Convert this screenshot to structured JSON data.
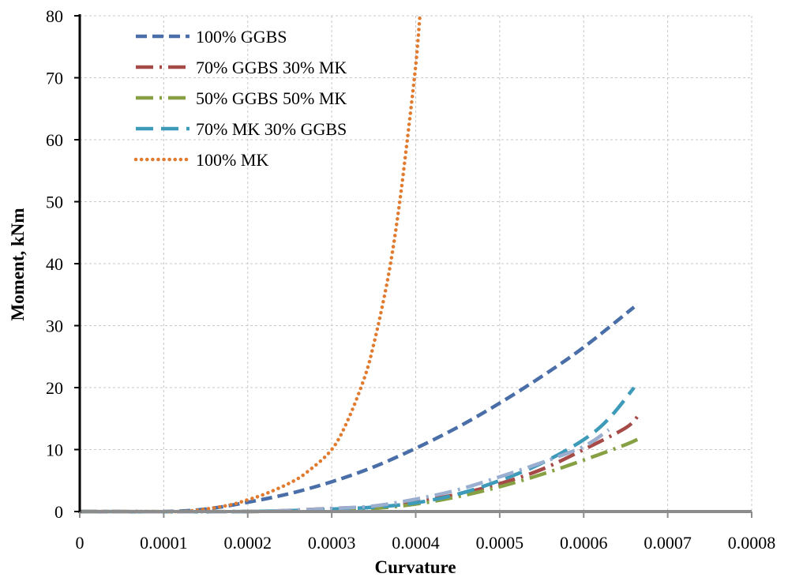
{
  "chart_data": {
    "type": "line",
    "title": "",
    "xlabel": "Curvature",
    "ylabel": "Moment, kNm",
    "xlim": [
      0,
      0.0008
    ],
    "ylim": [
      0,
      80
    ],
    "x_ticks": [
      "0",
      "0.0001",
      "0.0002",
      "0.0003",
      "0.0004",
      "0.0005",
      "0.0006",
      "0.0007",
      "0.0008"
    ],
    "y_ticks": [
      "0",
      "10",
      "20",
      "30",
      "40",
      "50",
      "60",
      "70",
      "80"
    ],
    "grid": true,
    "legend_position": "top-left",
    "series": [
      {
        "name": "100% GGBS",
        "color": "#4a6fa8",
        "style": "dashed",
        "x": [
          0,
          0.0001,
          0.00015,
          0.0002,
          0.00025,
          0.0003,
          0.00035,
          0.0004,
          0.00045,
          0.0005,
          0.00055,
          0.0006,
          0.00066
        ],
        "y": [
          0,
          0,
          0.4,
          1.5,
          2.9,
          4.8,
          7.2,
          10.2,
          13.6,
          17.5,
          21.8,
          26.5,
          33
        ]
      },
      {
        "name": "70% GGBS 30% MK",
        "color": "#a64a48",
        "style": "dash-dot",
        "x": [
          0,
          0.0002,
          0.0003,
          0.00035,
          0.0004,
          0.00045,
          0.0005,
          0.00055,
          0.0006,
          0.00065,
          0.000665
        ],
        "y": [
          0,
          0,
          0.5,
          0.8,
          1.6,
          2.8,
          4.5,
          6.8,
          10,
          13.5,
          15.5
        ]
      },
      {
        "name": "50% GGBS 50% MK",
        "color": "#86a043",
        "style": "dash-dot",
        "x": [
          0,
          0.0002,
          0.0003,
          0.00035,
          0.0004,
          0.00045,
          0.0005,
          0.00055,
          0.0006,
          0.00065,
          0.000665
        ],
        "y": [
          0,
          0,
          0.3,
          0.5,
          1.2,
          2.4,
          4,
          6,
          8.3,
          10.8,
          11.7
        ]
      },
      {
        "name": "70% MK 30% GGBS",
        "color": "#3d9ab8",
        "style": "long-dash",
        "x": [
          0,
          0.0002,
          0.0003,
          0.00035,
          0.0004,
          0.00045,
          0.0005,
          0.00055,
          0.0006,
          0.00063,
          0.00066
        ],
        "y": [
          0,
          0,
          0.4,
          0.7,
          1.4,
          2.8,
          5,
          7.8,
          11.6,
          15,
          20
        ]
      },
      {
        "name": "",
        "color": "#9aaed0",
        "style": "dash-dot",
        "x": [
          0,
          0.0002,
          0.0003,
          0.00035,
          0.0004,
          0.00045,
          0.0005,
          0.00055,
          0.0006,
          0.00063
        ],
        "y": [
          0,
          0,
          0.5,
          0.9,
          2,
          3.5,
          5.6,
          7.9,
          10.5,
          13.2
        ]
      },
      {
        "name": "100% MK",
        "color": "#e07b2f",
        "style": "dotted",
        "x": [
          0,
          4e-05,
          8e-05,
          0.00012,
          0.00015,
          0.00018,
          0.0002,
          0.00022,
          0.00025,
          0.00027,
          0.0003,
          0.00032,
          0.00034,
          0.00035,
          0.00036,
          0.00037,
          0.00038,
          0.00039,
          0.0004,
          0.000405
        ],
        "y": [
          0,
          0,
          0,
          0,
          0.4,
          1.1,
          1.9,
          2.8,
          4.6,
          6.3,
          10,
          15,
          22,
          27,
          33,
          40,
          49,
          60,
          72,
          80
        ]
      }
    ]
  }
}
